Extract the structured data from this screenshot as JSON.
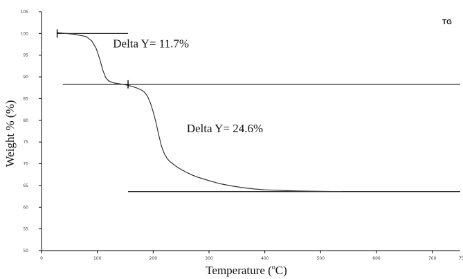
{
  "chart_data": {
    "type": "line",
    "title": "",
    "corner_label": "TG",
    "xlabel_prefix": "Temperature (",
    "xlabel_unit_sup": "o",
    "xlabel_suffix": "C)",
    "ylabel": "Weight % (%)",
    "xlim": [
      0,
      750
    ],
    "ylim": [
      50,
      105
    ],
    "x_ticks": [
      0,
      100,
      200,
      300,
      400,
      500,
      600,
      700
    ],
    "x_tick_partial": "75",
    "y_ticks": [
      50,
      55,
      60,
      65,
      70,
      75,
      80,
      85,
      90,
      95,
      100,
      105
    ],
    "grid": false,
    "series": [
      {
        "x": [
          28,
          60,
          80,
          90,
          98,
          104,
          110,
          115,
          120,
          125,
          130,
          140,
          150,
          160,
          170,
          180,
          185,
          190,
          195,
          200,
          205,
          210,
          215,
          220,
          225,
          230,
          235,
          240,
          250,
          260,
          270,
          280,
          300,
          320,
          340,
          360,
          380,
          400,
          420,
          440,
          460,
          480,
          500,
          520,
          540
        ],
        "y": [
          100.2,
          99.8,
          99.3,
          98.3,
          96.5,
          94.2,
          91.5,
          89.8,
          89.1,
          88.8,
          88.6,
          88.4,
          88.2,
          87.9,
          87.5,
          86.9,
          86.4,
          85.5,
          84.0,
          82.0,
          79.5,
          76.6,
          74.0,
          72.3,
          71.2,
          70.5,
          70.0,
          69.5,
          68.7,
          68.0,
          67.4,
          66.9,
          66.1,
          65.4,
          64.9,
          64.5,
          64.2,
          64.0,
          63.9,
          63.8,
          63.75,
          63.7,
          63.65,
          63.62,
          63.6
        ]
      }
    ],
    "baselines": [
      {
        "x1": 28,
        "x2": 155,
        "y": 100.0
      },
      {
        "x1": 38,
        "x2": 750,
        "y": 88.3
      },
      {
        "x1": 155,
        "x2": 750,
        "y": 63.6
      }
    ],
    "markers": [
      {
        "x": 28,
        "y": 100.0
      },
      {
        "x": 155,
        "y": 88.3
      }
    ],
    "annotations": [
      {
        "text": "Delta Y= 11.7%",
        "x": 128,
        "y": 96.8
      },
      {
        "text": "Delta Y= 24.6%",
        "x": 260,
        "y": 77.3
      }
    ]
  }
}
